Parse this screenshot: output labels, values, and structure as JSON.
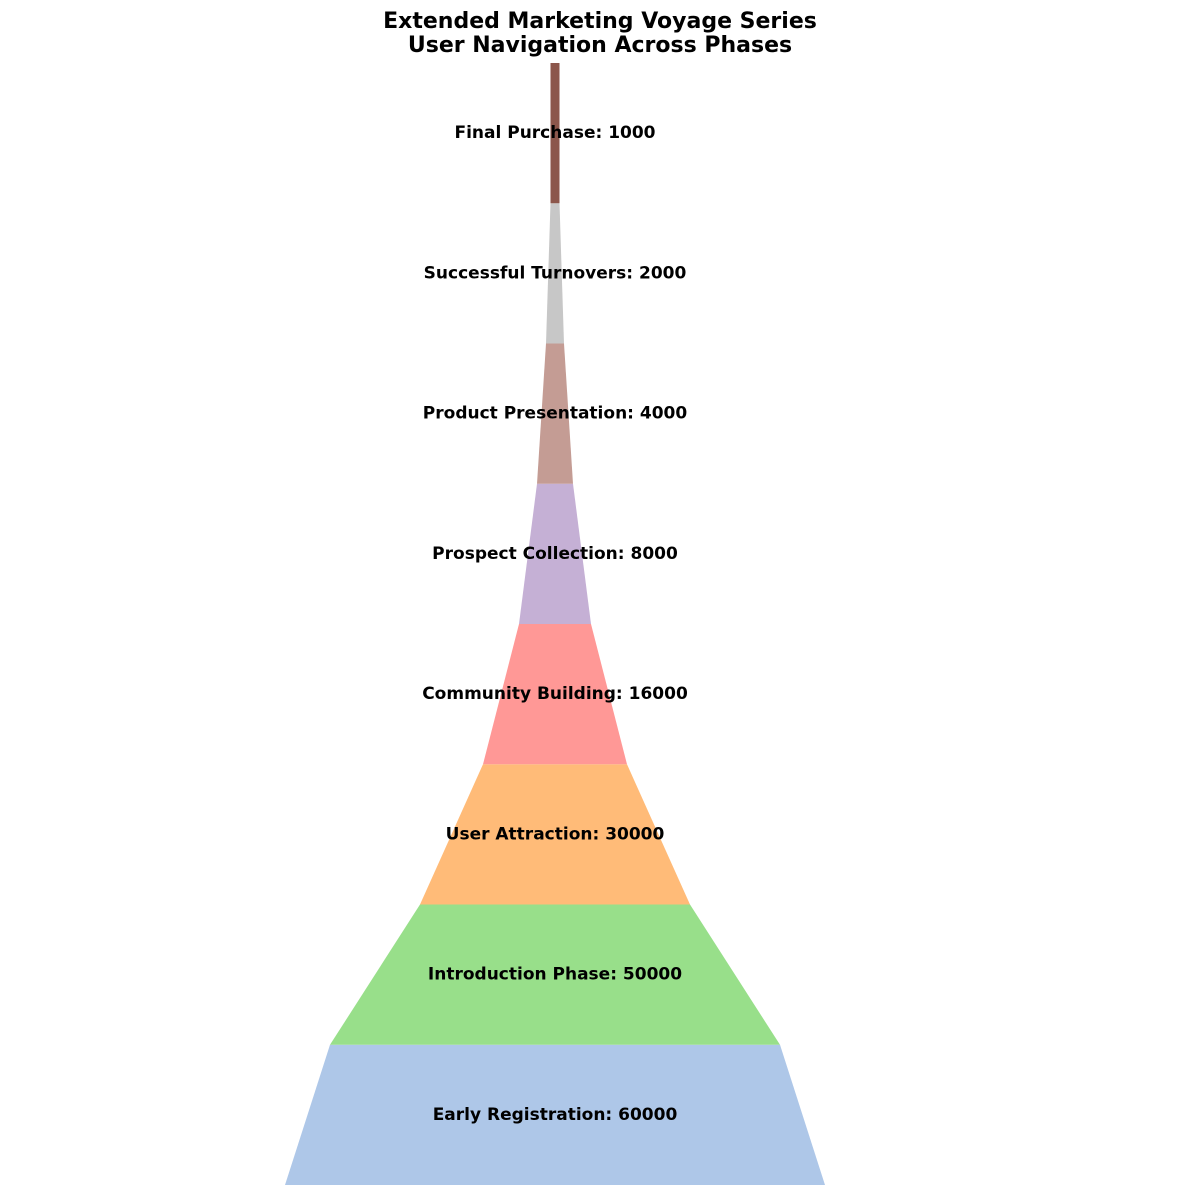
{
  "chart_data": {
    "type": "funnel",
    "title": "Extended Marketing Voyage Series",
    "subtitle": "User Navigation Across Phases",
    "stages": [
      {
        "label": "Early Registration",
        "value": 60000,
        "color": "#aec7e8"
      },
      {
        "label": "Introduction Phase",
        "value": 50000,
        "color": "#98df8a"
      },
      {
        "label": "User Attraction",
        "value": 30000,
        "color": "#ffbb78"
      },
      {
        "label": "Community Building",
        "value": 16000,
        "color": "#ff9896"
      },
      {
        "label": "Prospect Collection",
        "value": 8000,
        "color": "#c5b0d5"
      },
      {
        "label": "Product Presentation",
        "value": 4000,
        "color": "#c49c94"
      },
      {
        "label": "Successful Turnovers",
        "value": 2000,
        "color": "#c7c7c7"
      },
      {
        "label": "Final Purchase",
        "value": 1000,
        "color": "#8c564b"
      }
    ]
  }
}
